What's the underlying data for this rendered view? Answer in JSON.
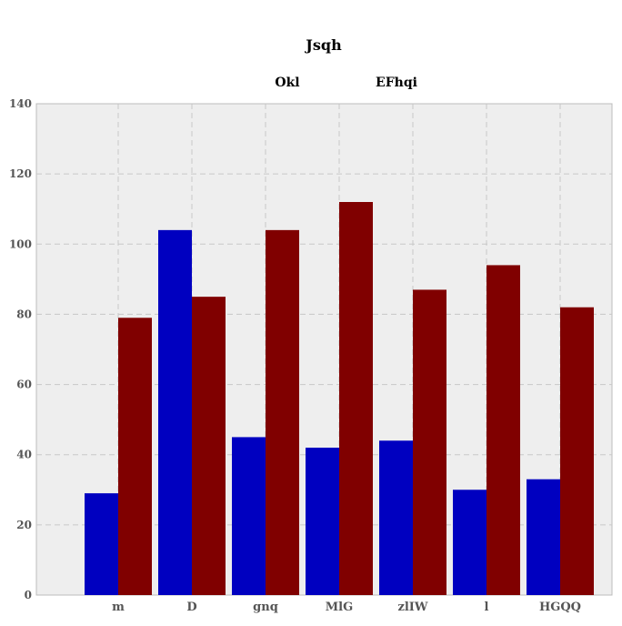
{
  "chart_data": {
    "type": "bar",
    "title": "Jsqh",
    "xlabel": "",
    "ylabel": "",
    "categories": [
      "m",
      "D",
      "gnq",
      "MlG",
      "zlIW",
      "l",
      "HGQQ"
    ],
    "series": [
      {
        "name": "Okl",
        "color": "#0000c0",
        "values": [
          29,
          104,
          45,
          42,
          44,
          30,
          33
        ]
      },
      {
        "name": "EFhqi",
        "color": "#800000",
        "values": [
          79,
          85,
          104,
          112,
          87,
          94,
          82
        ]
      }
    ],
    "ylim": [
      0,
      140
    ],
    "yticks": [
      0,
      20,
      40,
      60,
      80,
      100,
      120,
      140
    ],
    "grid": true,
    "legend_position": "top",
    "plot_background": "#eeeeee"
  }
}
